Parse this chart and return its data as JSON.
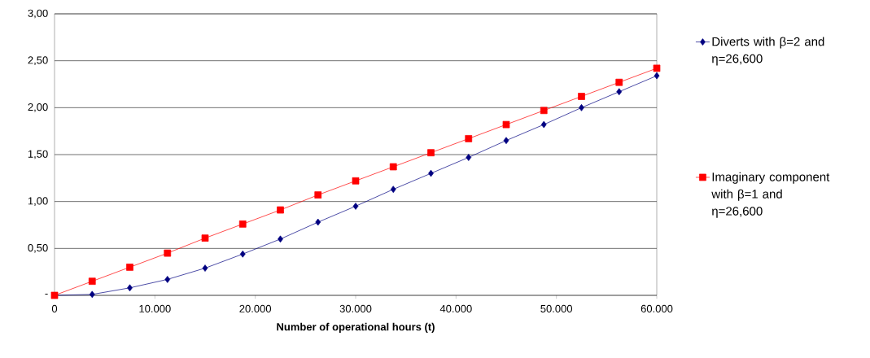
{
  "chart_data": {
    "type": "line",
    "xlabel": "Number of operational hours (t)",
    "x": [
      0,
      3750,
      7500,
      11250,
      15000,
      18750,
      22500,
      26250,
      30000,
      33750,
      37500,
      41250,
      45000,
      48750,
      52500,
      56250,
      60000
    ],
    "series": [
      {
        "name": "Diverts with β=2 and η=26,600",
        "color": "#000080",
        "marker": "diamond",
        "values": [
          0,
          0.01,
          0.08,
          0.17,
          0.29,
          0.44,
          0.6,
          0.78,
          0.95,
          1.13,
          1.3,
          1.47,
          1.65,
          1.82,
          2.0,
          2.17,
          2.34
        ]
      },
      {
        "name": "Imaginary component with β=1 and η=26,600",
        "color": "#ff0000",
        "marker": "square",
        "values": [
          0,
          0.15,
          0.3,
          0.45,
          0.61,
          0.76,
          0.91,
          1.07,
          1.22,
          1.37,
          1.52,
          1.67,
          1.82,
          1.97,
          2.12,
          2.27,
          2.42
        ]
      }
    ],
    "xlim": [
      0,
      60000
    ],
    "ylim": [
      0,
      3
    ],
    "xticks": [
      0,
      {
        "value": 10000,
        "label": "10.000"
      },
      {
        "value": 20000,
        "label": "20.000"
      },
      {
        "value": 30000,
        "label": "30.000"
      },
      {
        "value": 40000,
        "label": "40.000"
      },
      {
        "value": 50000,
        "label": "50.000"
      },
      {
        "value": 60000,
        "label": "60.000"
      }
    ],
    "yticks": [
      {
        "value": 0,
        "label": "-"
      },
      {
        "value": 0.5,
        "label": "0,50"
      },
      {
        "value": 1,
        "label": "1,00"
      },
      {
        "value": 1.5,
        "label": "1,50"
      },
      {
        "value": 2,
        "label": "2,00"
      },
      {
        "value": 2.5,
        "label": "2,50"
      },
      {
        "value": 3,
        "label": "3,00"
      }
    ],
    "grid": "y",
    "legend": "right",
    "line_style": "solid"
  }
}
